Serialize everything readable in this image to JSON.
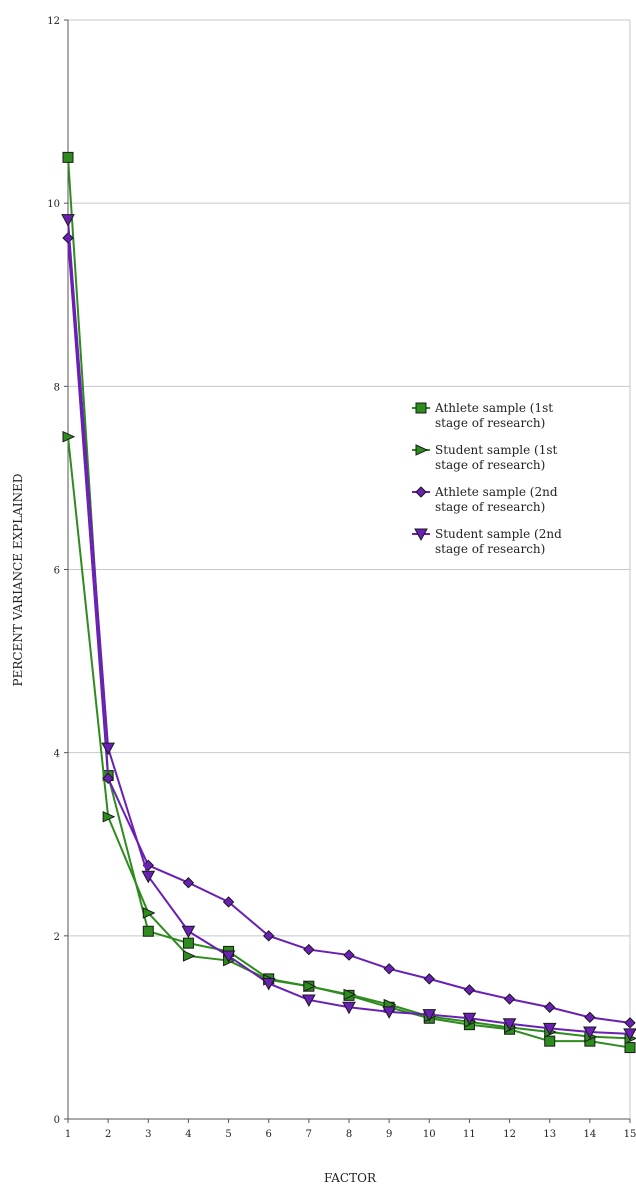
{
  "chart_data": {
    "type": "line",
    "title": "",
    "xlabel": "FACTOR",
    "ylabel": "PERCENT VARIANCE EXPLAINED",
    "xlim": [
      1,
      15
    ],
    "ylim": [
      0,
      12
    ],
    "x_ticks": [
      "1",
      "2",
      "3",
      "4",
      "5",
      "6",
      "7",
      "8",
      "9",
      "10",
      "11",
      "12",
      "13",
      "14",
      "15"
    ],
    "y_ticks": [
      "0",
      "2",
      "4",
      "6",
      "8",
      "10",
      "12"
    ],
    "grid": "horizontal",
    "legend_position": "right-middle",
    "x": [
      1,
      2,
      3,
      4,
      5,
      6,
      7,
      8,
      9,
      10,
      11,
      12,
      13,
      14,
      15
    ],
    "series": [
      {
        "name": "Athlete sample (1st stage of research)",
        "legend_lines": [
          "Athlete sample (1st",
          "stage of research)"
        ],
        "marker": "square",
        "color": "#2e8b1e",
        "values": [
          10.5,
          3.75,
          2.05,
          1.92,
          1.83,
          1.53,
          1.45,
          1.35,
          1.22,
          1.1,
          1.03,
          0.98,
          0.85,
          0.85,
          0.78
        ]
      },
      {
        "name": "Student sample (1st stage of research)",
        "legend_lines": [
          "Student sample (1st",
          "stage of research)"
        ],
        "marker": "triangle-right",
        "color": "#2e8b1e",
        "values": [
          7.45,
          3.3,
          2.25,
          1.78,
          1.73,
          1.52,
          1.45,
          1.36,
          1.25,
          1.12,
          1.06,
          1.0,
          0.95,
          0.9,
          0.88
        ]
      },
      {
        "name": "Athlete sample (2nd stage of research)",
        "legend_lines": [
          "Athlete sample (2nd",
          "stage of research)"
        ],
        "marker": "diamond",
        "color": "#6a1fb5",
        "values": [
          9.62,
          3.72,
          2.77,
          2.58,
          2.37,
          2.0,
          1.85,
          1.79,
          1.64,
          1.53,
          1.41,
          1.31,
          1.22,
          1.11,
          1.05
        ]
      },
      {
        "name": "Student sample (2nd stage of research)",
        "legend_lines": [
          "Student sample (2nd",
          "stage of research)"
        ],
        "marker": "triangle-down",
        "color": "#6a1fb5",
        "values": [
          9.82,
          4.05,
          2.65,
          2.05,
          1.78,
          1.48,
          1.3,
          1.22,
          1.17,
          1.14,
          1.1,
          1.04,
          0.99,
          0.95,
          0.93
        ]
      }
    ]
  }
}
